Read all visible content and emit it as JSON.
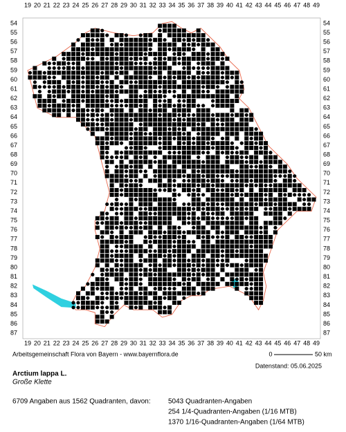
{
  "grid": {
    "columns": [
      19,
      20,
      21,
      22,
      23,
      24,
      25,
      26,
      27,
      28,
      29,
      30,
      31,
      32,
      33,
      34,
      35,
      36,
      37,
      38,
      39,
      40,
      41,
      42,
      43,
      44,
      45,
      46,
      47,
      48,
      49
    ],
    "rows": [
      54,
      55,
      56,
      57,
      58,
      59,
      60,
      61,
      62,
      63,
      64,
      65,
      66,
      67,
      68,
      69,
      70,
      71,
      72,
      73,
      74,
      75,
      76,
      77,
      78,
      79,
      80,
      81,
      82,
      83,
      84,
      85,
      86,
      87
    ]
  },
  "scale": {
    "start": "0",
    "end": "50 km"
  },
  "footer": {
    "credit": "Arbeitsgemeinschaft Flora von Bayern - www.bayernflora.de",
    "date": "Datenstand: 05.06.2025"
  },
  "species": {
    "name": "Arctium lappa L.",
    "common_name": "Große Klette"
  },
  "stats": {
    "summary": "6709 Angaben aus 1562 Quadranten, davon:",
    "lines": [
      "5043 Quadranten-Angaben",
      "254 1/4-Quadranten-Angaben (1/16 MTB)",
      "1370 1/16-Quadranten-Angaben (1/64 MTB)"
    ]
  }
}
